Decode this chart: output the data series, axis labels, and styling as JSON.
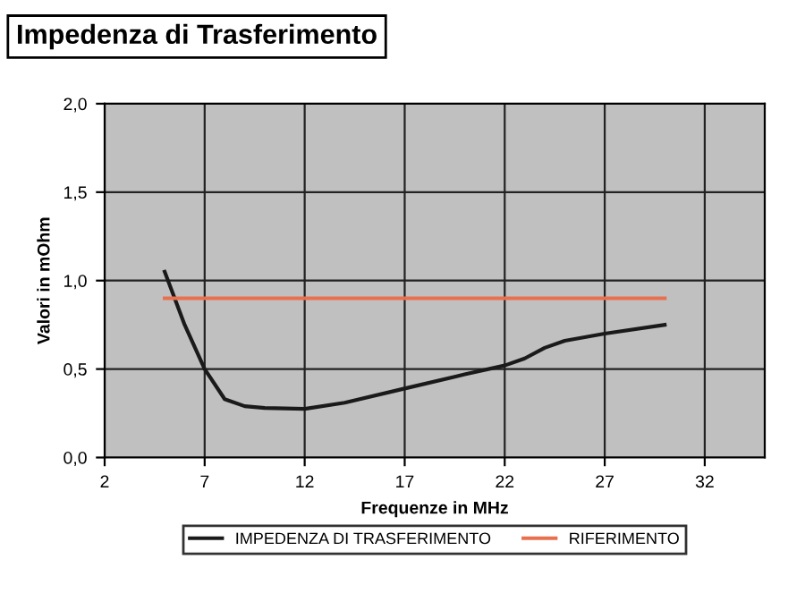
{
  "chart_data": {
    "type": "line",
    "title": "Impedenza di Trasferimento",
    "xlabel": "Frequenze in MHz",
    "ylabel": "Valori in mOhm",
    "series": [
      {
        "name": "IMPEDENZA DI TRASFERIMENTO",
        "color": "#1a1a1a",
        "x": [
          5,
          6,
          7,
          8,
          9,
          10,
          12,
          14,
          17,
          20,
          22,
          23,
          24,
          25,
          27,
          30
        ],
        "values": [
          1.05,
          0.75,
          0.5,
          0.33,
          0.29,
          0.28,
          0.275,
          0.31,
          0.39,
          0.47,
          0.52,
          0.56,
          0.62,
          0.66,
          0.7,
          0.75
        ]
      },
      {
        "name": "RIFERIMENTO",
        "color": "#e8704f",
        "x": [
          5,
          30
        ],
        "values": [
          0.9,
          0.9
        ]
      }
    ],
    "xlim": [
      2,
      35
    ],
    "xticks": [
      2,
      7,
      12,
      17,
      22,
      27,
      32
    ],
    "ylim": [
      0,
      2
    ],
    "yticks": [
      {
        "value": 0,
        "label": "0,0"
      },
      {
        "value": 0.5,
        "label": "0,5"
      },
      {
        "value": 1,
        "label": "1,0"
      },
      {
        "value": 1.5,
        "label": "1,5"
      },
      {
        "value": 2,
        "label": "2,0"
      }
    ],
    "grid": true,
    "legend": "bottom",
    "marker": "none",
    "line_style": "solid"
  }
}
